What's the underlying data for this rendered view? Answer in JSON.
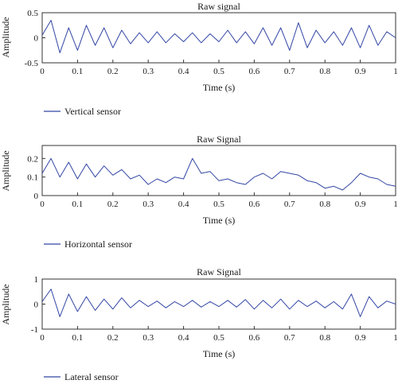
{
  "chart_data": [
    {
      "type": "line",
      "title": "Raw signal",
      "xlabel": "Time (s)",
      "ylabel": "Amplitude",
      "xlim": [
        0,
        1
      ],
      "ylim": [
        -0.5,
        0.5
      ],
      "xticks": [
        "0",
        "0.1",
        "0.2",
        "0.3",
        "0.4",
        "0.5",
        "0.6",
        "0.7",
        "0.8",
        "0.9",
        "1"
      ],
      "yticks": [
        "-0.5",
        "0",
        "0.5"
      ],
      "ytick_values": [
        -0.5,
        0,
        0.5
      ],
      "color": "#3346a5",
      "grid": false,
      "series": [
        {
          "name": "Vertical sensor",
          "x": [
            0,
            0.025,
            0.05,
            0.075,
            0.1,
            0.125,
            0.15,
            0.175,
            0.2,
            0.225,
            0.25,
            0.275,
            0.3,
            0.325,
            0.35,
            0.375,
            0.4,
            0.425,
            0.45,
            0.475,
            0.5,
            0.525,
            0.55,
            0.575,
            0.6,
            0.625,
            0.65,
            0.675,
            0.7,
            0.725,
            0.75,
            0.775,
            0.8,
            0.825,
            0.85,
            0.875,
            0.9,
            0.925,
            0.95,
            0.975,
            1
          ],
          "y": [
            0.05,
            0.35,
            -0.3,
            0.2,
            -0.25,
            0.25,
            -0.15,
            0.2,
            -0.2,
            0.15,
            -0.12,
            0.1,
            -0.1,
            0.12,
            -0.1,
            0.08,
            -0.08,
            0.1,
            -0.1,
            0.08,
            -0.08,
            0.15,
            -0.1,
            0.12,
            -0.12,
            0.2,
            -0.15,
            0.2,
            -0.25,
            0.3,
            -0.2,
            0.15,
            -0.1,
            0.12,
            -0.15,
            0.2,
            -0.2,
            0.25,
            -0.15,
            0.12,
            0
          ]
        }
      ]
    },
    {
      "type": "line",
      "title": "Raw Signal",
      "xlabel": "Time (s)",
      "ylabel": "Amplitude",
      "xlim": [
        0,
        1
      ],
      "ylim": [
        0,
        0.27
      ],
      "xticks": [
        "0",
        "0.1",
        "0.2",
        "0.3",
        "0.4",
        "0.5",
        "0.6",
        "0.7",
        "0.8",
        "0.9",
        "1"
      ],
      "yticks": [
        "0",
        "0.1",
        "0.2"
      ],
      "ytick_values": [
        0,
        0.1,
        0.2
      ],
      "color": "#3346a5",
      "grid": false,
      "series": [
        {
          "name": "Horizontal sensor",
          "x": [
            0,
            0.025,
            0.05,
            0.075,
            0.1,
            0.125,
            0.15,
            0.175,
            0.2,
            0.225,
            0.25,
            0.275,
            0.3,
            0.325,
            0.35,
            0.375,
            0.4,
            0.425,
            0.45,
            0.475,
            0.5,
            0.525,
            0.55,
            0.575,
            0.6,
            0.625,
            0.65,
            0.675,
            0.7,
            0.725,
            0.75,
            0.775,
            0.8,
            0.825,
            0.85,
            0.875,
            0.9,
            0.925,
            0.95,
            0.975,
            1
          ],
          "y": [
            0.12,
            0.2,
            0.1,
            0.18,
            0.09,
            0.17,
            0.1,
            0.16,
            0.11,
            0.14,
            0.09,
            0.11,
            0.06,
            0.09,
            0.07,
            0.1,
            0.09,
            0.2,
            0.12,
            0.13,
            0.08,
            0.09,
            0.07,
            0.06,
            0.1,
            0.12,
            0.09,
            0.13,
            0.12,
            0.11,
            0.08,
            0.07,
            0.04,
            0.05,
            0.03,
            0.07,
            0.12,
            0.1,
            0.09,
            0.06,
            0.05
          ]
        }
      ]
    },
    {
      "type": "line",
      "title": "Raw Signal",
      "xlabel": "Time (s)",
      "ylabel": "Amplitude",
      "xlim": [
        0,
        1
      ],
      "ylim": [
        -1,
        1
      ],
      "xticks": [
        "0",
        "0.1",
        "0.2",
        "0.3",
        "0.4",
        "0.5",
        "0.6",
        "0.7",
        "0.8",
        "0.9",
        "1"
      ],
      "yticks": [
        "-1",
        "0",
        "1"
      ],
      "ytick_values": [
        -1,
        0,
        1
      ],
      "color": "#3346a5",
      "grid": false,
      "series": [
        {
          "name": "Lateral sensor",
          "x": [
            0,
            0.025,
            0.05,
            0.075,
            0.1,
            0.125,
            0.15,
            0.175,
            0.2,
            0.225,
            0.25,
            0.275,
            0.3,
            0.325,
            0.35,
            0.375,
            0.4,
            0.425,
            0.45,
            0.475,
            0.5,
            0.525,
            0.55,
            0.575,
            0.6,
            0.625,
            0.65,
            0.675,
            0.7,
            0.725,
            0.75,
            0.775,
            0.8,
            0.825,
            0.85,
            0.875,
            0.9,
            0.925,
            0.95,
            0.975,
            1
          ],
          "y": [
            0.1,
            0.6,
            -0.5,
            0.4,
            -0.3,
            0.3,
            -0.25,
            0.2,
            -0.2,
            0.25,
            -0.15,
            0.15,
            -0.1,
            0.12,
            -0.15,
            0.1,
            -0.1,
            0.15,
            -0.12,
            0.1,
            -0.1,
            0.15,
            -0.12,
            0.18,
            -0.2,
            0.15,
            -0.15,
            0.2,
            -0.2,
            0.15,
            -0.1,
            0.12,
            -0.15,
            0.1,
            -0.2,
            0.4,
            -0.5,
            0.3,
            -0.15,
            0.12,
            0
          ]
        }
      ]
    }
  ]
}
